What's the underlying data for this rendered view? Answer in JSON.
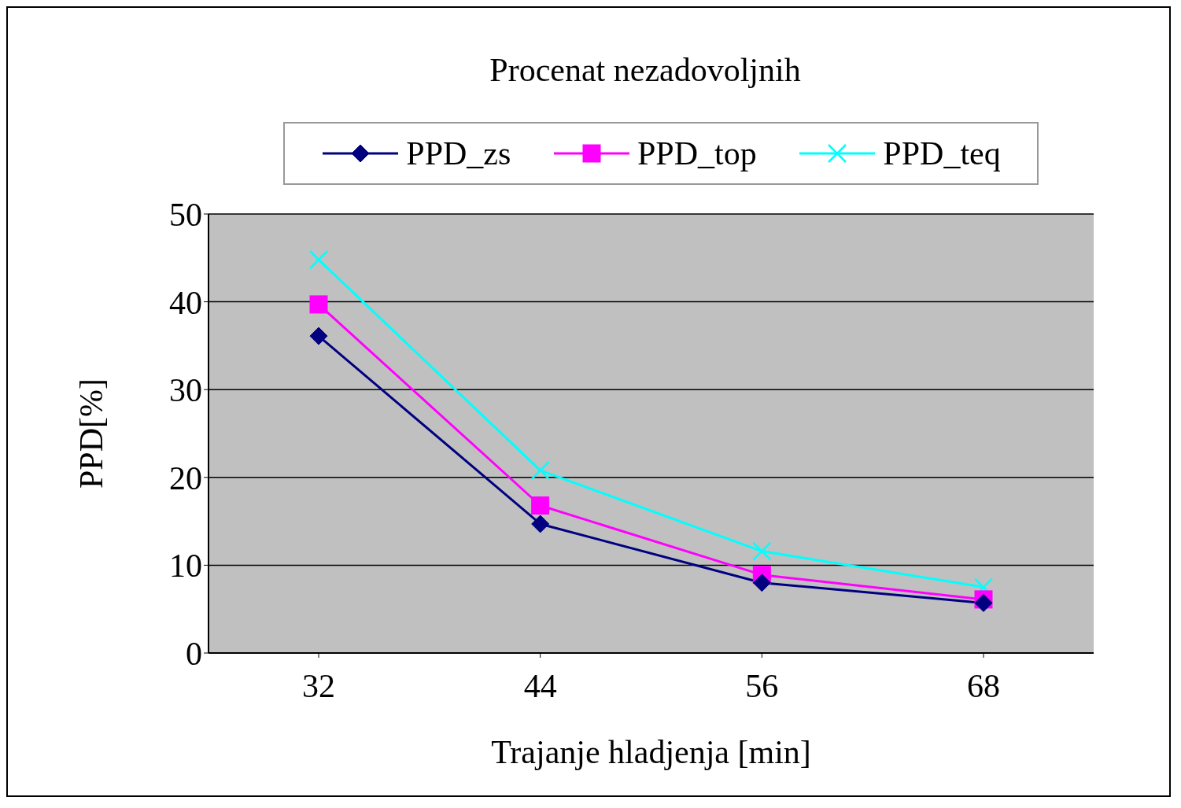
{
  "chart_data": {
    "type": "line",
    "title": "Procenat nezadovoljnih",
    "xlabel": "Trajanje hladjenja [min]",
    "ylabel": "PPD[%]",
    "categories": [
      "32",
      "44",
      "56",
      "68"
    ],
    "series": [
      {
        "name": "PPD_zs",
        "color": "#000080",
        "marker": "diamond",
        "values": [
          36.1,
          14.7,
          8.0,
          5.7
        ]
      },
      {
        "name": "PPD_top",
        "color": "#ff00ff",
        "marker": "square",
        "values": [
          39.7,
          16.8,
          8.9,
          6.1
        ]
      },
      {
        "name": "PPD_teq",
        "color": "#00ffff",
        "marker": "cross",
        "values": [
          44.8,
          20.8,
          11.6,
          7.5
        ]
      }
    ],
    "ylim": [
      0,
      50
    ],
    "yticks": [
      0,
      10,
      20,
      30,
      40,
      50
    ],
    "grid": "y",
    "legend": "top",
    "line_style": "solid"
  }
}
